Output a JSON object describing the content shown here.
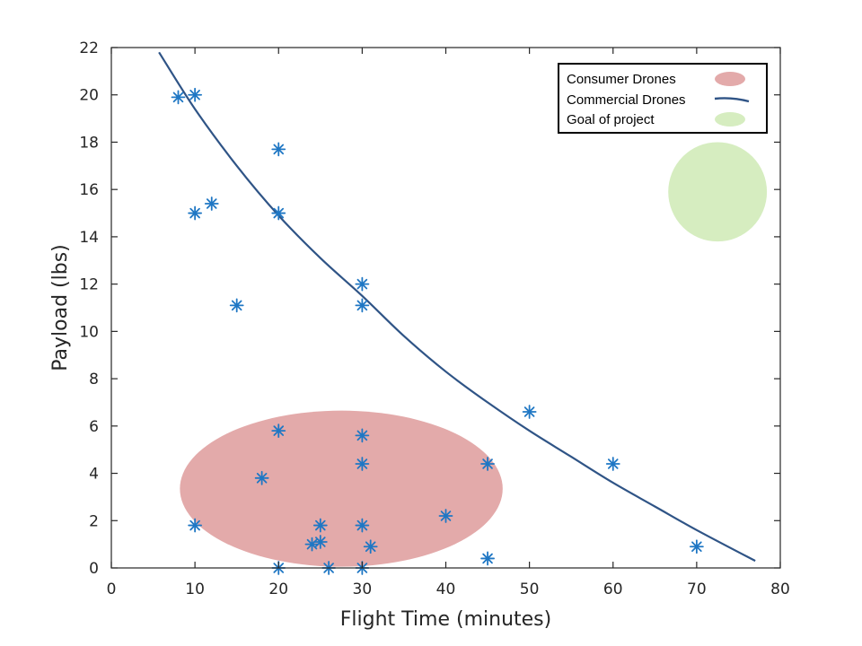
{
  "chart_data": {
    "type": "scatter",
    "xlabel": "Flight Time (minutes)",
    "ylabel": "Payload (lbs)",
    "xlim": [
      0,
      80
    ],
    "ylim": [
      0,
      22
    ],
    "xticks": [
      0,
      10,
      20,
      30,
      40,
      50,
      60,
      70,
      80
    ],
    "yticks": [
      0,
      2,
      4,
      6,
      8,
      10,
      12,
      14,
      16,
      18,
      20,
      22
    ],
    "grid": false,
    "legend_position": "top-right",
    "legend": [
      {
        "label": "Consumer Drones",
        "kind": "ellipse",
        "color": "#e3aaaa"
      },
      {
        "label": "Commercial Drones",
        "kind": "line",
        "color": "#2f5486"
      },
      {
        "label": "Goal of project",
        "kind": "ellipse",
        "color": "#d6edc0"
      }
    ],
    "points_color": "#1f77c4",
    "series": [
      {
        "type": "scatter",
        "points": [
          [
            8,
            19.9
          ],
          [
            10,
            20
          ],
          [
            20,
            17.7
          ],
          [
            10,
            15
          ],
          [
            12,
            15.4
          ],
          [
            20,
            15
          ],
          [
            15,
            11.1
          ],
          [
            30,
            12
          ],
          [
            30,
            11.1
          ],
          [
            50,
            6.6
          ],
          [
            60,
            4.4
          ],
          [
            70,
            0.9
          ],
          [
            45,
            4.4
          ],
          [
            45,
            0.4
          ],
          [
            40,
            2.2
          ],
          [
            30,
            5.6
          ],
          [
            30,
            4.4
          ],
          [
            30,
            1.8
          ],
          [
            30,
            0
          ],
          [
            31,
            0.9
          ],
          [
            26,
            0
          ],
          [
            25,
            1.8
          ],
          [
            25,
            1.1
          ],
          [
            24,
            1
          ],
          [
            20,
            5.8
          ],
          [
            18,
            3.8
          ],
          [
            20,
            0
          ],
          [
            10,
            1.8
          ]
        ]
      },
      {
        "type": "line",
        "color": "#2f5486",
        "x": [
          5.7,
          10,
          15,
          20,
          25,
          30,
          35,
          40,
          45,
          50,
          55,
          60,
          65,
          70,
          77
        ],
        "y": [
          21.8,
          19.4,
          17,
          14.9,
          13.1,
          11.5,
          9.8,
          8.3,
          7,
          5.8,
          4.7,
          3.6,
          2.6,
          1.6,
          0.3
        ]
      }
    ],
    "regions": [
      {
        "name": "Consumer Drones",
        "cx": 27.5,
        "cy": 3.35,
        "rx": 19.3,
        "ry": 3.3,
        "color": "#e3aaaa"
      },
      {
        "name": "Goal of project",
        "cx": 72.5,
        "cy": 15.9,
        "rx": 5.9,
        "ry": 2.1,
        "color": "#d6edc0"
      }
    ]
  }
}
